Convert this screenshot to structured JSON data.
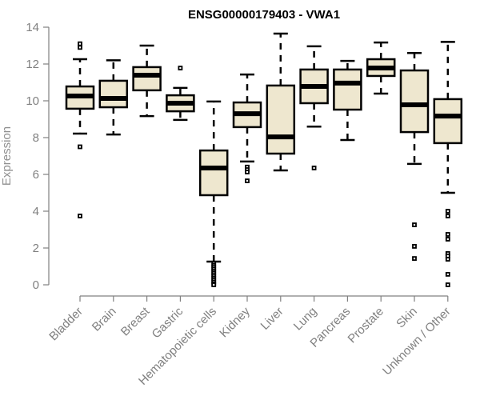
{
  "chart_data": {
    "type": "boxplot",
    "title": "ENSG00000179403 - VWA1",
    "xlabel": "",
    "ylabel": "Expression",
    "ylim": [
      0,
      14
    ],
    "yticks": [
      0,
      2,
      4,
      6,
      8,
      10,
      12,
      14
    ],
    "grid": false,
    "colors": {
      "box_fill": "#EEE7CF",
      "box_stroke": "#000000",
      "axis": "#808080",
      "tick_text": "#808080"
    },
    "categories": [
      "Bladder",
      "Brain",
      "Breast",
      "Gastric",
      "Hematopoietic cells",
      "Kidney",
      "Liver",
      "Lung",
      "Pancreas",
      "Prostate",
      "Skin",
      "Unknown / Other"
    ],
    "series": [
      {
        "name": "Bladder",
        "whisker_low": 8.22,
        "q1": 9.57,
        "median": 10.26,
        "q3": 10.78,
        "whisker_high": 12.26,
        "outliers": [
          13.1,
          12.9,
          7.5,
          3.74
        ]
      },
      {
        "name": "Brain",
        "whisker_low": 8.17,
        "q1": 9.65,
        "median": 10.13,
        "q3": 11.09,
        "whisker_high": 12.2,
        "outliers": []
      },
      {
        "name": "Breast",
        "whisker_low": 9.17,
        "q1": 10.57,
        "median": 11.39,
        "q3": 11.83,
        "whisker_high": 13.0,
        "outliers": []
      },
      {
        "name": "Gastric",
        "whisker_low": 8.96,
        "q1": 9.43,
        "median": 9.87,
        "q3": 10.3,
        "whisker_high": 10.7,
        "outliers": [
          11.78
        ]
      },
      {
        "name": "Hematopoietic cells",
        "whisker_low": 1.26,
        "q1": 4.87,
        "median": 6.35,
        "q3": 7.3,
        "whisker_high": 9.96,
        "outliers": [
          1.15,
          1.05,
          0.95,
          0.85,
          0.75,
          0.65,
          0.55,
          0.45,
          0.35,
          0.25,
          0.15,
          0.05,
          0.0
        ]
      },
      {
        "name": "Kidney",
        "whisker_low": 6.7,
        "q1": 8.57,
        "median": 9.3,
        "q3": 9.91,
        "whisker_high": 11.43,
        "outliers": [
          6.4,
          6.26,
          6.13,
          5.65
        ]
      },
      {
        "name": "Liver",
        "whisker_low": 6.22,
        "q1": 7.13,
        "median": 8.04,
        "q3": 10.83,
        "whisker_high": 13.65,
        "outliers": []
      },
      {
        "name": "Lung",
        "whisker_low": 8.6,
        "q1": 9.87,
        "median": 10.78,
        "q3": 11.7,
        "whisker_high": 12.96,
        "outliers": [
          6.35
        ]
      },
      {
        "name": "Pancreas",
        "whisker_low": 7.87,
        "q1": 9.52,
        "median": 10.96,
        "q3": 11.7,
        "whisker_high": 12.17,
        "outliers": []
      },
      {
        "name": "Prostate",
        "whisker_low": 10.39,
        "q1": 11.35,
        "median": 11.78,
        "q3": 12.26,
        "whisker_high": 13.17,
        "outliers": []
      },
      {
        "name": "Skin",
        "whisker_low": 6.57,
        "q1": 8.3,
        "median": 9.78,
        "q3": 11.65,
        "whisker_high": 12.6,
        "outliers": [
          3.26,
          2.09,
          1.43
        ]
      },
      {
        "name": "Unknown / Other",
        "whisker_low": 5.0,
        "q1": 7.7,
        "median": 9.17,
        "q3": 10.09,
        "whisker_high": 13.2,
        "outliers": [
          4.0,
          3.74,
          2.74,
          2.48,
          1.7,
          1.57,
          1.39,
          0.57,
          0.0
        ]
      }
    ]
  }
}
